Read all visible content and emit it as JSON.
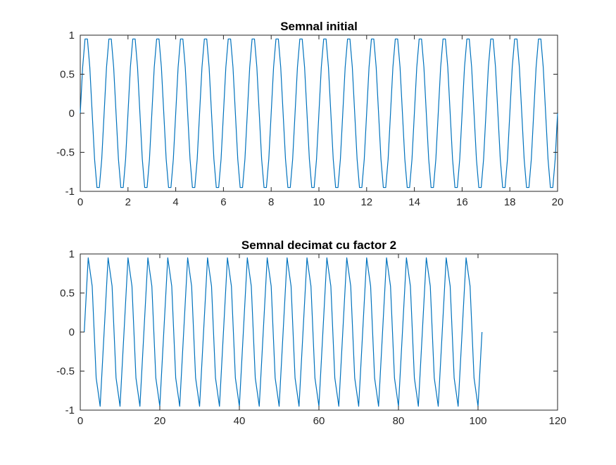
{
  "chart_data": [
    {
      "type": "line",
      "title": "Semnal initial",
      "xlabel": "",
      "ylabel": "",
      "xlim": [
        0,
        20
      ],
      "ylim": [
        -1,
        1
      ],
      "xticks": [
        0,
        2,
        4,
        6,
        8,
        10,
        12,
        14,
        16,
        18,
        20
      ],
      "xtick_labels": [
        "0",
        "2",
        "4",
        "6",
        "8",
        "10",
        "12",
        "14",
        "16",
        "18",
        "20"
      ],
      "yticks": [
        -1,
        -0.5,
        0,
        0.5,
        1
      ],
      "ytick_labels": [
        "-1",
        "-0.5",
        "0",
        "0.5",
        "1"
      ],
      "grid": false,
      "series": [
        {
          "color": "#0072BD",
          "signal": {
            "form": "sine",
            "amplitude": 1,
            "frequency": 1,
            "x_start": 0,
            "x_end": 20,
            "x_step": 0.1
          }
        }
      ]
    },
    {
      "type": "line",
      "title": "Semnal decimat cu factor 2",
      "xlabel": "",
      "ylabel": "",
      "xlim": [
        0,
        120
      ],
      "ylim": [
        -1,
        1
      ],
      "xticks": [
        0,
        20,
        40,
        60,
        80,
        100,
        120
      ],
      "xtick_labels": [
        "0",
        "20",
        "40",
        "60",
        "80",
        "100",
        "120"
      ],
      "yticks": [
        -1,
        -0.5,
        0,
        0.5,
        1
      ],
      "ytick_labels": [
        "-1",
        "-0.5",
        "0",
        "0.5",
        "1"
      ],
      "grid": false,
      "series": [
        {
          "color": "#0072BD",
          "signal": {
            "form": "sine",
            "amplitude": 1,
            "frequency": 0.2,
            "x_start": 1,
            "x_end": 101,
            "x_step": 1
          }
        }
      ]
    }
  ]
}
